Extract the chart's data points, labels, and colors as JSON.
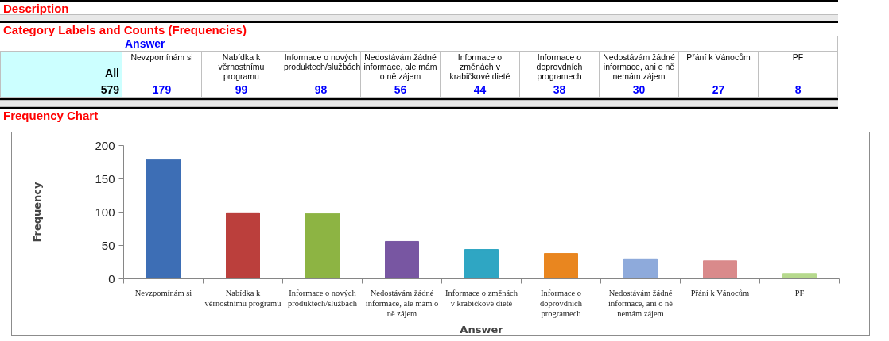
{
  "chart_data": {
    "type": "bar",
    "title": "Frequency Chart",
    "xlabel": "Answer",
    "ylabel": "Frequency",
    "annotations": [
      "Description",
      "Category Labels and Counts (Frequencies)",
      "All",
      "579"
    ],
    "categories": [
      "Nevzpomínám si",
      "Nabídka k věrnostnímu programu",
      "Informace o nových produktech/službách",
      "Nedostávám žádné informace, ale mám o ně zájem",
      "Informace o změnách v krabičkové dietě",
      "Informace o doprovdních programech",
      "Nedostávám žádné informace, ani o ně nemám zájem",
      "Přání k Vánocům",
      "PF"
    ],
    "values": [
      179,
      99,
      98,
      56,
      44,
      38,
      30,
      27,
      8
    ],
    "colors": [
      "#3d6eb5",
      "#bb3f3c",
      "#8db443",
      "#7856a2",
      "#2fa6c3",
      "#e9861f",
      "#8eaadb",
      "#d98a8b",
      "#b6d98d"
    ],
    "ylim": [
      0,
      200
    ],
    "yticks": [
      0,
      50,
      100,
      150,
      200
    ],
    "grid": false,
    "data_labels": true
  }
}
